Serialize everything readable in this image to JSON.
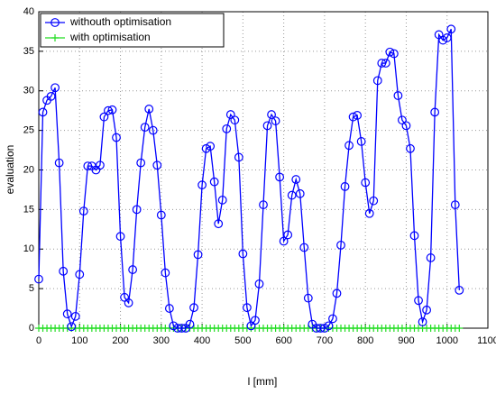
{
  "chart_data": {
    "type": "line",
    "xlabel": "l [mm]",
    "ylabel": "evaluation",
    "x": [
      0,
      10,
      20,
      30,
      40,
      50,
      60,
      70,
      80,
      90,
      100,
      110,
      120,
      130,
      140,
      150,
      160,
      170,
      180,
      190,
      200,
      210,
      220,
      230,
      240,
      250,
      260,
      270,
      280,
      290,
      300,
      310,
      320,
      330,
      340,
      350,
      360,
      370,
      380,
      390,
      400,
      410,
      420,
      430,
      440,
      450,
      460,
      470,
      480,
      490,
      500,
      510,
      520,
      530,
      540,
      550,
      560,
      570,
      580,
      590,
      600,
      610,
      620,
      630,
      640,
      650,
      660,
      670,
      680,
      690,
      700,
      710,
      720,
      730,
      740,
      750,
      760,
      770,
      780,
      790,
      800,
      810,
      820,
      830,
      840,
      850,
      860,
      870,
      880,
      890,
      900,
      910,
      920,
      930,
      940,
      950,
      960,
      970,
      980,
      990,
      1000,
      1010,
      1020,
      1030
    ],
    "series": [
      {
        "name": "withouth optimisation",
        "color": "#0000ff",
        "marker": "o",
        "line": true,
        "values": [
          6.2,
          27.3,
          28.8,
          29.3,
          30.4,
          20.9,
          7.2,
          1.8,
          0.2,
          1.5,
          6.8,
          14.8,
          20.5,
          20.5,
          20,
          20.6,
          26.7,
          27.5,
          27.6,
          24.1,
          11.6,
          3.9,
          3.2,
          7.4,
          15,
          20.9,
          25.4,
          27.7,
          25,
          20.6,
          14.3,
          7,
          2.5,
          0.3,
          0,
          0,
          0,
          0.5,
          2.6,
          9.3,
          18.1,
          22.7,
          23,
          18.5,
          13.2,
          16.2,
          25.2,
          27,
          26.3,
          21.6,
          9.4,
          2.6,
          0.3,
          1,
          5.6,
          15.6,
          25.6,
          27,
          26.2,
          19.1,
          11,
          11.8,
          16.8,
          18.8,
          17,
          10.2,
          3.8,
          0.5,
          0,
          0,
          0,
          0.3,
          1.2,
          4.4,
          10.5,
          17.9,
          23.1,
          26.7,
          26.9,
          23.6,
          18.4,
          14.5,
          16.1,
          31.3,
          33.5,
          33.5,
          34.9,
          34.7,
          29.4,
          26.3,
          25.6,
          22.7,
          11.7,
          3.5,
          0.8,
          2.3,
          8.9,
          27.3,
          37.1,
          36.4,
          36.7,
          37.8,
          15.6,
          4.8
        ]
      },
      {
        "name": "with optimisation",
        "color": "#22dd22",
        "marker": "+",
        "line": true,
        "values": [
          0,
          0,
          0,
          0,
          0,
          0,
          0,
          0,
          0,
          0,
          0,
          0,
          0,
          0,
          0,
          0,
          0,
          0,
          0,
          0,
          0,
          0,
          0,
          0,
          0,
          0,
          0,
          0,
          0,
          0,
          0,
          0,
          0,
          0,
          0,
          0,
          0,
          0,
          0,
          0,
          0,
          0,
          0,
          0,
          0,
          0,
          0,
          0,
          0,
          0,
          0,
          0,
          0,
          0,
          0,
          0,
          0,
          0,
          0,
          0,
          0,
          0,
          0,
          0,
          0,
          0,
          0,
          0,
          0,
          0,
          0,
          0,
          0,
          0,
          0,
          0,
          0,
          0,
          0,
          0,
          0,
          0,
          0,
          0,
          0,
          0,
          0,
          0,
          0,
          0,
          0,
          0,
          0,
          0,
          0,
          0,
          0,
          0,
          0,
          0,
          0,
          0,
          0,
          0
        ]
      }
    ],
    "xlim": [
      0,
      1100
    ],
    "xticks": [
      0,
      100,
      200,
      300,
      400,
      500,
      600,
      700,
      800,
      900,
      1000,
      1100
    ],
    "ylim": [
      0,
      40
    ],
    "yticks": [
      0,
      5,
      10,
      15,
      20,
      25,
      30,
      35,
      40
    ],
    "grid": true,
    "legend": "upper left"
  }
}
